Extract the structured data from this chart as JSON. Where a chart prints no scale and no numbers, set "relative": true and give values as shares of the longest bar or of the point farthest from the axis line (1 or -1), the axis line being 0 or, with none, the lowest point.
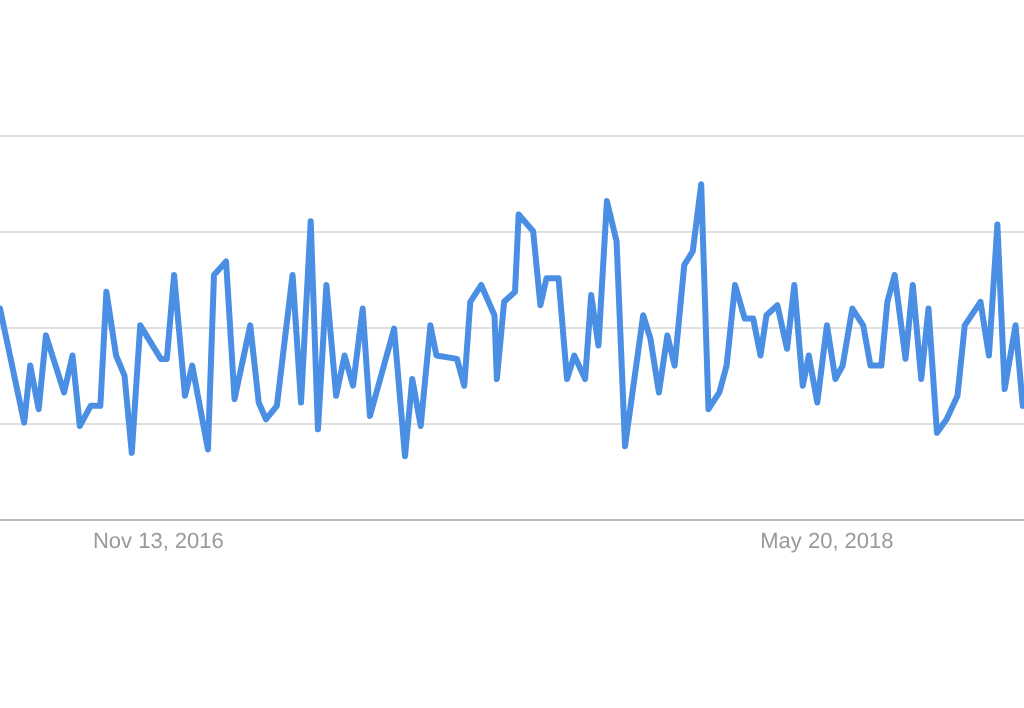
{
  "chart_data": {
    "type": "line",
    "relative": true,
    "grid": "y",
    "marker": "none",
    "line_style": "solid",
    "xlim": [
      "2016-07-05",
      "2018-10-30"
    ],
    "xticks": [
      {
        "value": "2016-11-13",
        "label": "Nov 13, 2016"
      },
      {
        "value": "2018-05-20",
        "label": "May 20, 2018"
      }
    ],
    "series": [
      {
        "color": "#4a8fe3",
        "x": [
          "2016-07-05",
          "2016-07-25",
          "2016-07-30",
          "2016-08-06",
          "2016-08-12",
          "2016-08-27",
          "2016-09-03",
          "2016-09-09",
          "2016-09-18",
          "2016-09-26",
          "2016-10-01",
          "2016-10-09",
          "2016-10-16",
          "2016-10-22",
          "2016-10-29",
          "2016-11-15",
          "2016-11-20",
          "2016-11-26",
          "2016-12-05",
          "2016-12-11",
          "2016-12-24",
          "2016-12-29",
          "2017-01-08",
          "2017-01-15",
          "2017-01-28",
          "2017-02-04",
          "2017-02-10",
          "2017-02-19",
          "2017-03-04",
          "2017-03-11",
          "2017-03-19",
          "2017-03-25",
          "2017-04-01",
          "2017-04-09",
          "2017-04-16",
          "2017-04-23",
          "2017-05-01",
          "2017-05-07",
          "2017-05-27",
          "2017-06-05",
          "2017-06-11",
          "2017-06-18",
          "2017-06-26",
          "2017-07-01",
          "2017-07-18",
          "2017-07-24",
          "2017-07-29",
          "2017-08-07",
          "2017-08-18",
          "2017-08-20",
          "2017-08-26",
          "2017-09-04",
          "2017-09-07",
          "2017-09-19",
          "2017-09-25",
          "2017-09-30",
          "2017-10-10",
          "2017-10-17",
          "2017-10-23",
          "2017-11-01",
          "2017-11-06",
          "2017-11-12",
          "2017-11-19",
          "2017-11-27",
          "2017-12-04",
          "2017-12-19",
          "2017-12-25",
          "2018-01-01",
          "2018-01-08",
          "2018-01-14",
          "2018-01-22",
          "2018-01-29",
          "2018-02-05",
          "2018-02-11",
          "2018-02-20",
          "2018-02-26",
          "2018-03-05",
          "2018-03-13",
          "2018-03-20",
          "2018-03-26",
          "2018-03-31",
          "2018-04-09",
          "2018-04-17",
          "2018-04-23",
          "2018-04-30",
          "2018-05-05",
          "2018-05-12",
          "2018-05-20",
          "2018-05-27",
          "2018-06-02",
          "2018-06-10",
          "2018-06-19",
          "2018-06-25",
          "2018-07-04",
          "2018-07-09",
          "2018-07-15",
          "2018-07-24",
          "2018-07-30",
          "2018-08-06",
          "2018-08-12",
          "2018-08-19",
          "2018-08-27",
          "2018-09-05",
          "2018-09-11",
          "2018-09-24",
          "2018-10-01",
          "2018-10-08",
          "2018-10-14",
          "2018-10-23",
          "2018-10-29"
        ],
        "values": [
          0.63,
          0.29,
          0.46,
          0.33,
          0.55,
          0.38,
          0.49,
          0.28,
          0.34,
          0.34,
          0.68,
          0.49,
          0.43,
          0.2,
          0.58,
          0.48,
          0.48,
          0.73,
          0.37,
          0.46,
          0.21,
          0.73,
          0.77,
          0.36,
          0.58,
          0.35,
          0.3,
          0.34,
          0.73,
          0.35,
          0.89,
          0.27,
          0.7,
          0.37,
          0.49,
          0.4,
          0.63,
          0.31,
          0.57,
          0.19,
          0.42,
          0.28,
          0.58,
          0.49,
          0.48,
          0.4,
          0.65,
          0.7,
          0.61,
          0.42,
          0.65,
          0.68,
          0.91,
          0.86,
          0.64,
          0.72,
          0.72,
          0.42,
          0.49,
          0.42,
          0.67,
          0.52,
          0.95,
          0.83,
          0.22,
          0.61,
          0.54,
          0.38,
          0.55,
          0.46,
          0.76,
          0.8,
          1,
          0.33,
          0.38,
          0.46,
          0.7,
          0.6,
          0.6,
          0.49,
          0.61,
          0.64,
          0.51,
          0.7,
          0.4,
          0.49,
          0.35,
          0.58,
          0.42,
          0.46,
          0.63,
          0.58,
          0.46,
          0.46,
          0.65,
          0.73,
          0.48,
          0.7,
          0.42,
          0.63,
          0.26,
          0.3,
          0.37,
          0.58,
          0.65,
          0.49,
          0.88,
          0.39,
          0.58,
          0.34
        ]
      }
    ]
  }
}
